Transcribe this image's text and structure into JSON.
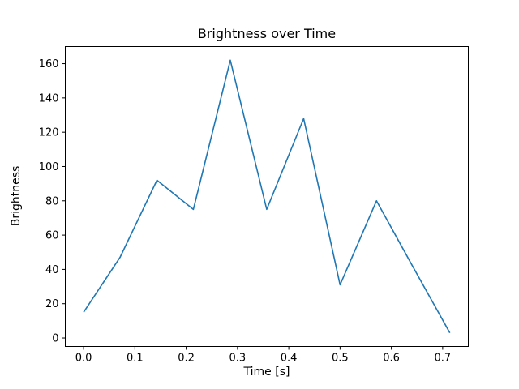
{
  "chart_data": {
    "type": "line",
    "title": "Brightness over Time",
    "xlabel": "Time [s]",
    "ylabel": "Brightness",
    "x": [
      0.0,
      0.071,
      0.143,
      0.214,
      0.286,
      0.357,
      0.429,
      0.5,
      0.571,
      0.643,
      0.714
    ],
    "y": [
      15,
      47,
      92,
      75,
      162,
      75,
      128,
      31,
      80,
      41,
      3
    ],
    "xlim": [
      -0.0357,
      0.75
    ],
    "ylim": [
      -4.95,
      169.95
    ],
    "xticks": [
      0.0,
      0.1,
      0.2,
      0.3,
      0.4,
      0.5,
      0.6,
      0.7
    ],
    "xtick_labels": [
      "0.0",
      "0.1",
      "0.2",
      "0.3",
      "0.4",
      "0.5",
      "0.6",
      "0.7"
    ],
    "yticks": [
      0,
      20,
      40,
      60,
      80,
      100,
      120,
      140,
      160
    ],
    "ytick_labels": [
      "0",
      "20",
      "40",
      "60",
      "80",
      "100",
      "120",
      "140",
      "160"
    ],
    "line_color": "#1f77b4",
    "axis_color": "#000000",
    "background": "#ffffff",
    "grid": "off",
    "legend": "none"
  }
}
